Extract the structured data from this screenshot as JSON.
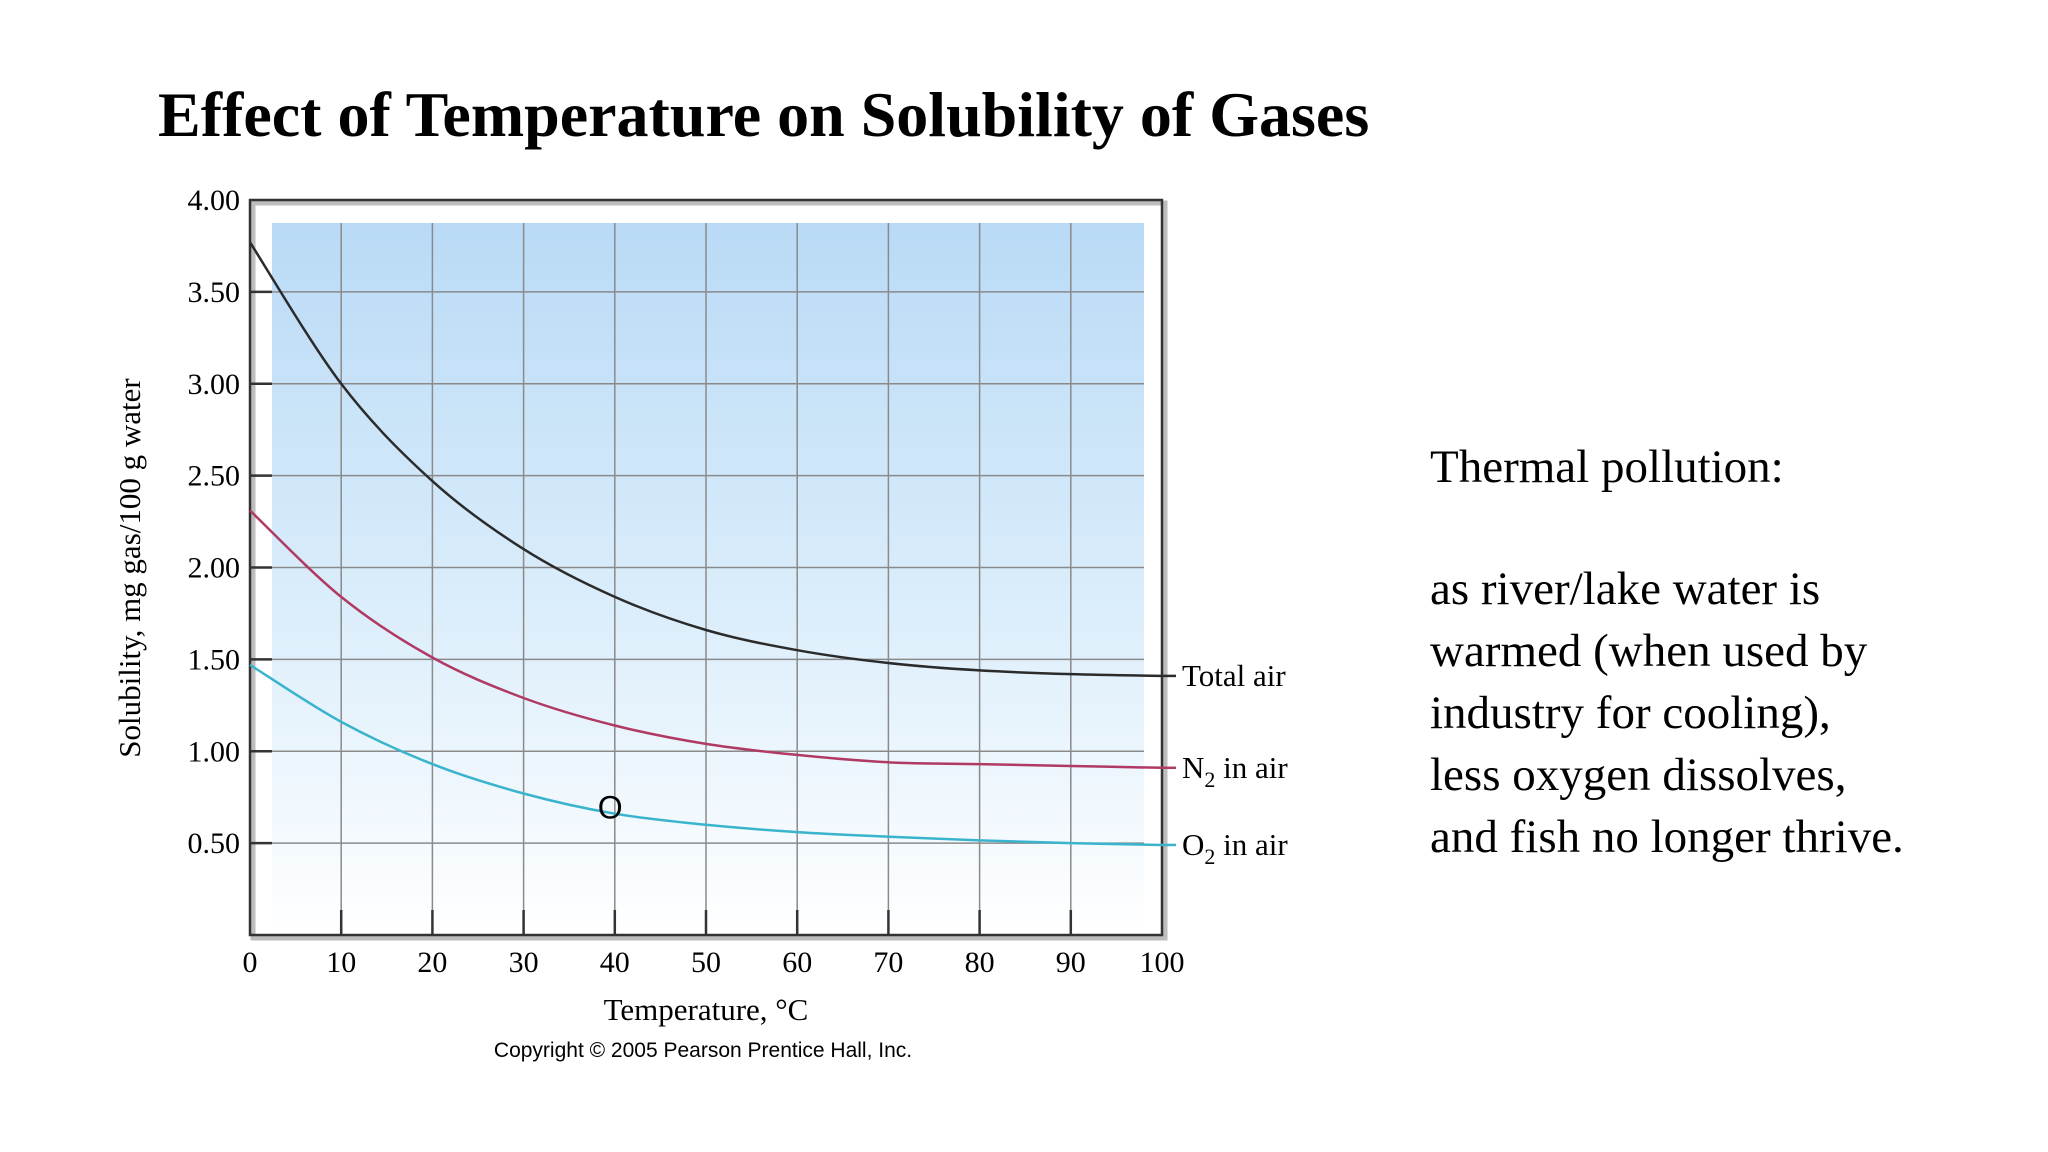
{
  "slide": {
    "title": "Effect of Temperature on Solubility of Gases",
    "side_heading": "Thermal pollution:",
    "side_lines": [
      "as river/lake water is",
      "warmed (when used by",
      "industry for cooling),",
      "less oxygen dissolves,",
      "and fish no longer thrive."
    ]
  },
  "chart_data": {
    "type": "line",
    "title": "",
    "xlabel": "Temperature, °C",
    "ylabel": "Solubility, mg gas/100 g water",
    "xlim": [
      0,
      100
    ],
    "ylim": [
      0,
      4.0
    ],
    "xticks": [
      0,
      10,
      20,
      30,
      40,
      50,
      60,
      70,
      80,
      90,
      100
    ],
    "yticks": [
      "0.50",
      "1.00",
      "1.50",
      "2.00",
      "2.50",
      "3.00",
      "3.50",
      "4.00"
    ],
    "grid": true,
    "copyright": "Copyright © 2005 Pearson Prentice Hall, Inc.",
    "annotation": {
      "text": "O",
      "x": 39.5,
      "y": 0.7
    },
    "series": [
      {
        "label_main": "Total air",
        "label_sub": "",
        "label_tail": "",
        "color": "#2b2b2b",
        "x": [
          0,
          10,
          20,
          30,
          40,
          50,
          60,
          70,
          80,
          90,
          100
        ],
        "y": [
          3.77,
          3.0,
          2.47,
          2.1,
          1.84,
          1.66,
          1.55,
          1.48,
          1.44,
          1.42,
          1.41
        ]
      },
      {
        "label_main": "N",
        "label_sub": "2",
        "label_tail": " in air",
        "color": "#b03a63",
        "x": [
          0,
          10,
          20,
          30,
          40,
          50,
          60,
          70,
          80,
          90,
          100
        ],
        "y": [
          2.31,
          1.84,
          1.51,
          1.29,
          1.14,
          1.04,
          0.98,
          0.94,
          0.93,
          0.92,
          0.91
        ]
      },
      {
        "label_main": "O",
        "label_sub": "2",
        "label_tail": " in air",
        "color": "#3ab4cc",
        "x": [
          0,
          10,
          20,
          30,
          40,
          50,
          60,
          70,
          80,
          90,
          100
        ],
        "y": [
          1.47,
          1.16,
          0.93,
          0.77,
          0.66,
          0.6,
          0.56,
          0.535,
          0.515,
          0.5,
          0.49
        ]
      }
    ]
  }
}
